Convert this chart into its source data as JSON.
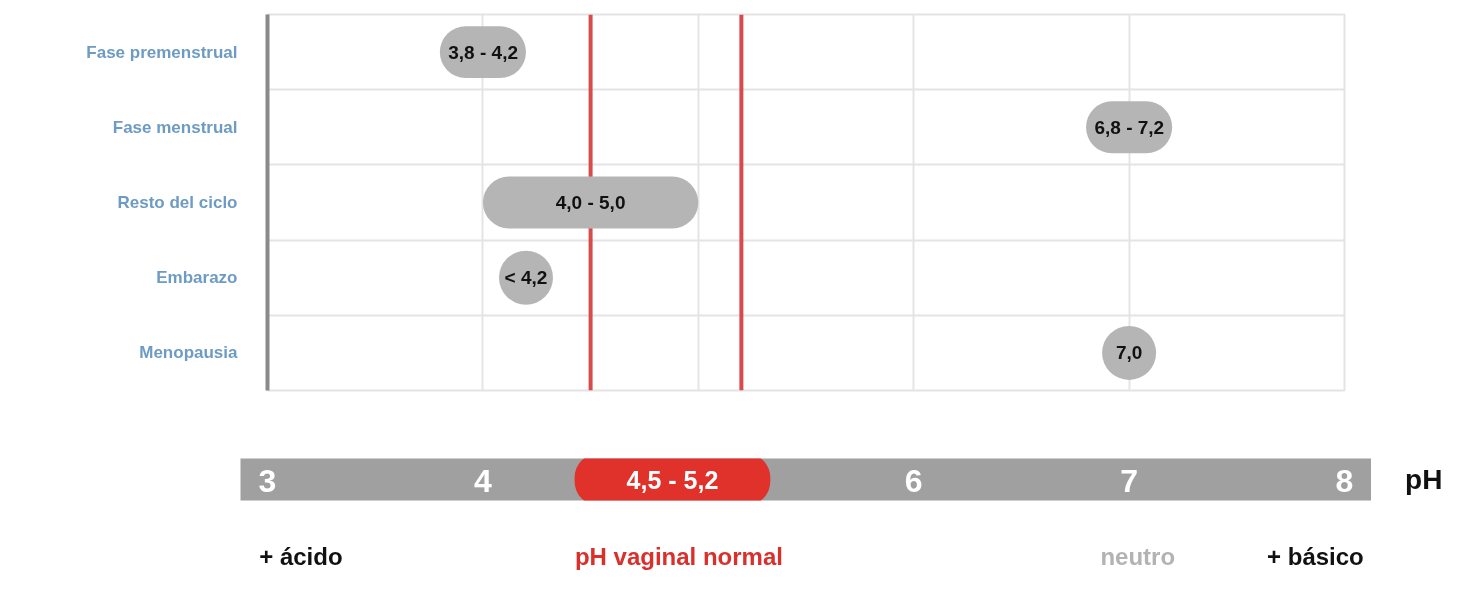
{
  "chart_data": {
    "type": "bar",
    "orientation": "horizontal",
    "categories": [
      "Fase premenstrual",
      "Fase menstrual",
      "Resto del ciclo",
      "Embarazo",
      "Menopausia"
    ],
    "series": [
      {
        "color": "#b5b5b5",
        "base": [
          3.8,
          6.8,
          4.0,
          null,
          null
        ],
        "values": [
          0.4,
          0.4,
          1.0,
          null,
          null
        ]
      },
      {
        "type": "scatter",
        "color": "#b5b5b5",
        "values": [
          null,
          null,
          null,
          4.2,
          7.0
        ],
        "value_labels": [
          null,
          null,
          null,
          "< 4,2",
          "7,0"
        ]
      }
    ],
    "marker": "circle",
    "xlim": [
      3,
      8
    ],
    "xticks": [
      3,
      4,
      {
        "value": 5,
        "label": null
      },
      6,
      7,
      8
    ],
    "xlabel": "pH",
    "grid": true,
    "ref_lines": [
      {
        "axis": "x",
        "value": 4.5,
        "color": "#d84a4c"
      },
      {
        "axis": "x",
        "value": 5.2,
        "color": "#d84a4c"
      }
    ],
    "annotations": [
      {
        "text": "3,8 - 4,2",
        "x": 4.2,
        "y": "Fase premenstrual"
      },
      {
        "text": "6,8 - 7,2",
        "x": 7.2,
        "y": "Fase menstrual"
      },
      {
        "text": "4,0 - 5,0",
        "x": 4.5,
        "y": "Resto del ciclo"
      },
      "4,5 - 5,2",
      "+ ácido",
      "pH vaginal normal",
      "neutro",
      "+ básico"
    ]
  }
}
